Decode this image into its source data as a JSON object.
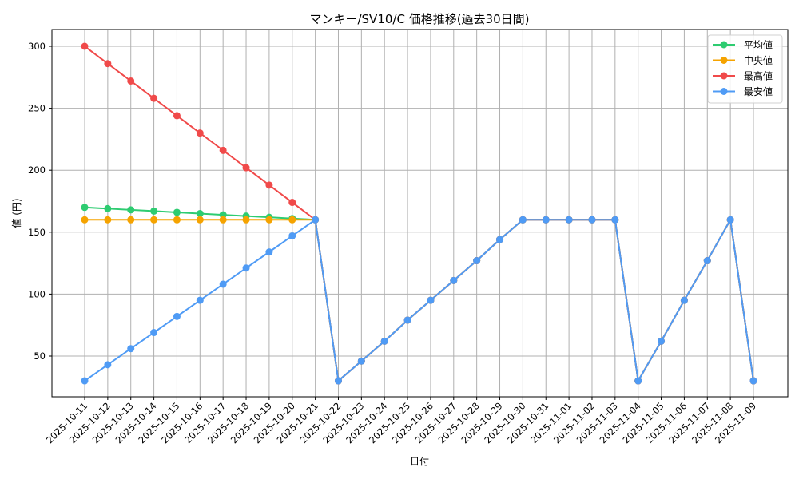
{
  "chart_data": {
    "type": "line",
    "title": "マンキー/SV10/C 価格推移(過去30日間)",
    "xlabel": "日付",
    "ylabel": "値 (円)",
    "ylim": [
      15,
      313
    ],
    "yticks": [
      50,
      100,
      150,
      200,
      250,
      300
    ],
    "grid": true,
    "legend_position": "upper right",
    "categories": [
      "2025-10-11",
      "2025-10-12",
      "2025-10-13",
      "2025-10-14",
      "2025-10-15",
      "2025-10-16",
      "2025-10-17",
      "2025-10-18",
      "2025-10-19",
      "2025-10-20",
      "2025-10-21",
      "2025-10-22",
      "2025-10-23",
      "2025-10-24",
      "2025-10-25",
      "2025-10-26",
      "2025-10-27",
      "2025-10-28",
      "2025-10-29",
      "2025-10-30",
      "2025-10-31",
      "2025-11-01",
      "2025-11-02",
      "2025-11-03",
      "2025-11-04",
      "2025-11-05",
      "2025-11-06",
      "2025-11-07",
      "2025-11-08",
      "2025-11-09"
    ],
    "series": [
      {
        "name": "平均値",
        "color": "#2ecc71",
        "values": [
          170,
          169,
          168,
          167,
          166,
          165,
          164,
          163,
          162,
          161,
          160,
          null,
          null,
          null,
          null,
          null,
          null,
          null,
          null,
          null,
          null,
          null,
          null,
          null,
          null,
          null,
          null,
          null,
          null,
          null
        ]
      },
      {
        "name": "中央値",
        "color": "#f5a300",
        "values": [
          160,
          160,
          160,
          160,
          160,
          160,
          160,
          160,
          160,
          160,
          160,
          null,
          null,
          null,
          null,
          null,
          null,
          null,
          null,
          null,
          null,
          null,
          null,
          null,
          null,
          null,
          null,
          null,
          null,
          null
        ]
      },
      {
        "name": "最高値",
        "color": "#f04a4a",
        "values": [
          300,
          286,
          272,
          258,
          244,
          230,
          216,
          202,
          188,
          174,
          160,
          null,
          null,
          null,
          null,
          null,
          null,
          null,
          null,
          null,
          null,
          null,
          null,
          null,
          null,
          null,
          null,
          null,
          null,
          null
        ]
      },
      {
        "name": "最安値",
        "color": "#4f9bf5",
        "values": [
          30,
          43,
          56,
          69,
          82,
          95,
          108,
          121,
          134,
          147,
          160,
          30,
          46,
          62,
          79,
          95,
          111,
          127,
          144,
          160,
          160,
          160,
          160,
          160,
          30,
          62,
          95,
          127,
          160,
          30
        ]
      }
    ],
    "overlay_note": "Series 平均値/中央値/最高値 from 2025-10-22 onward coincide with 最安値 (drawn underneath)",
    "overlay_values_after_1021": [
      30,
      46,
      62,
      79,
      95,
      111,
      127,
      144,
      160,
      160,
      160,
      160,
      160,
      30,
      62,
      95,
      127,
      160,
      30
    ]
  }
}
